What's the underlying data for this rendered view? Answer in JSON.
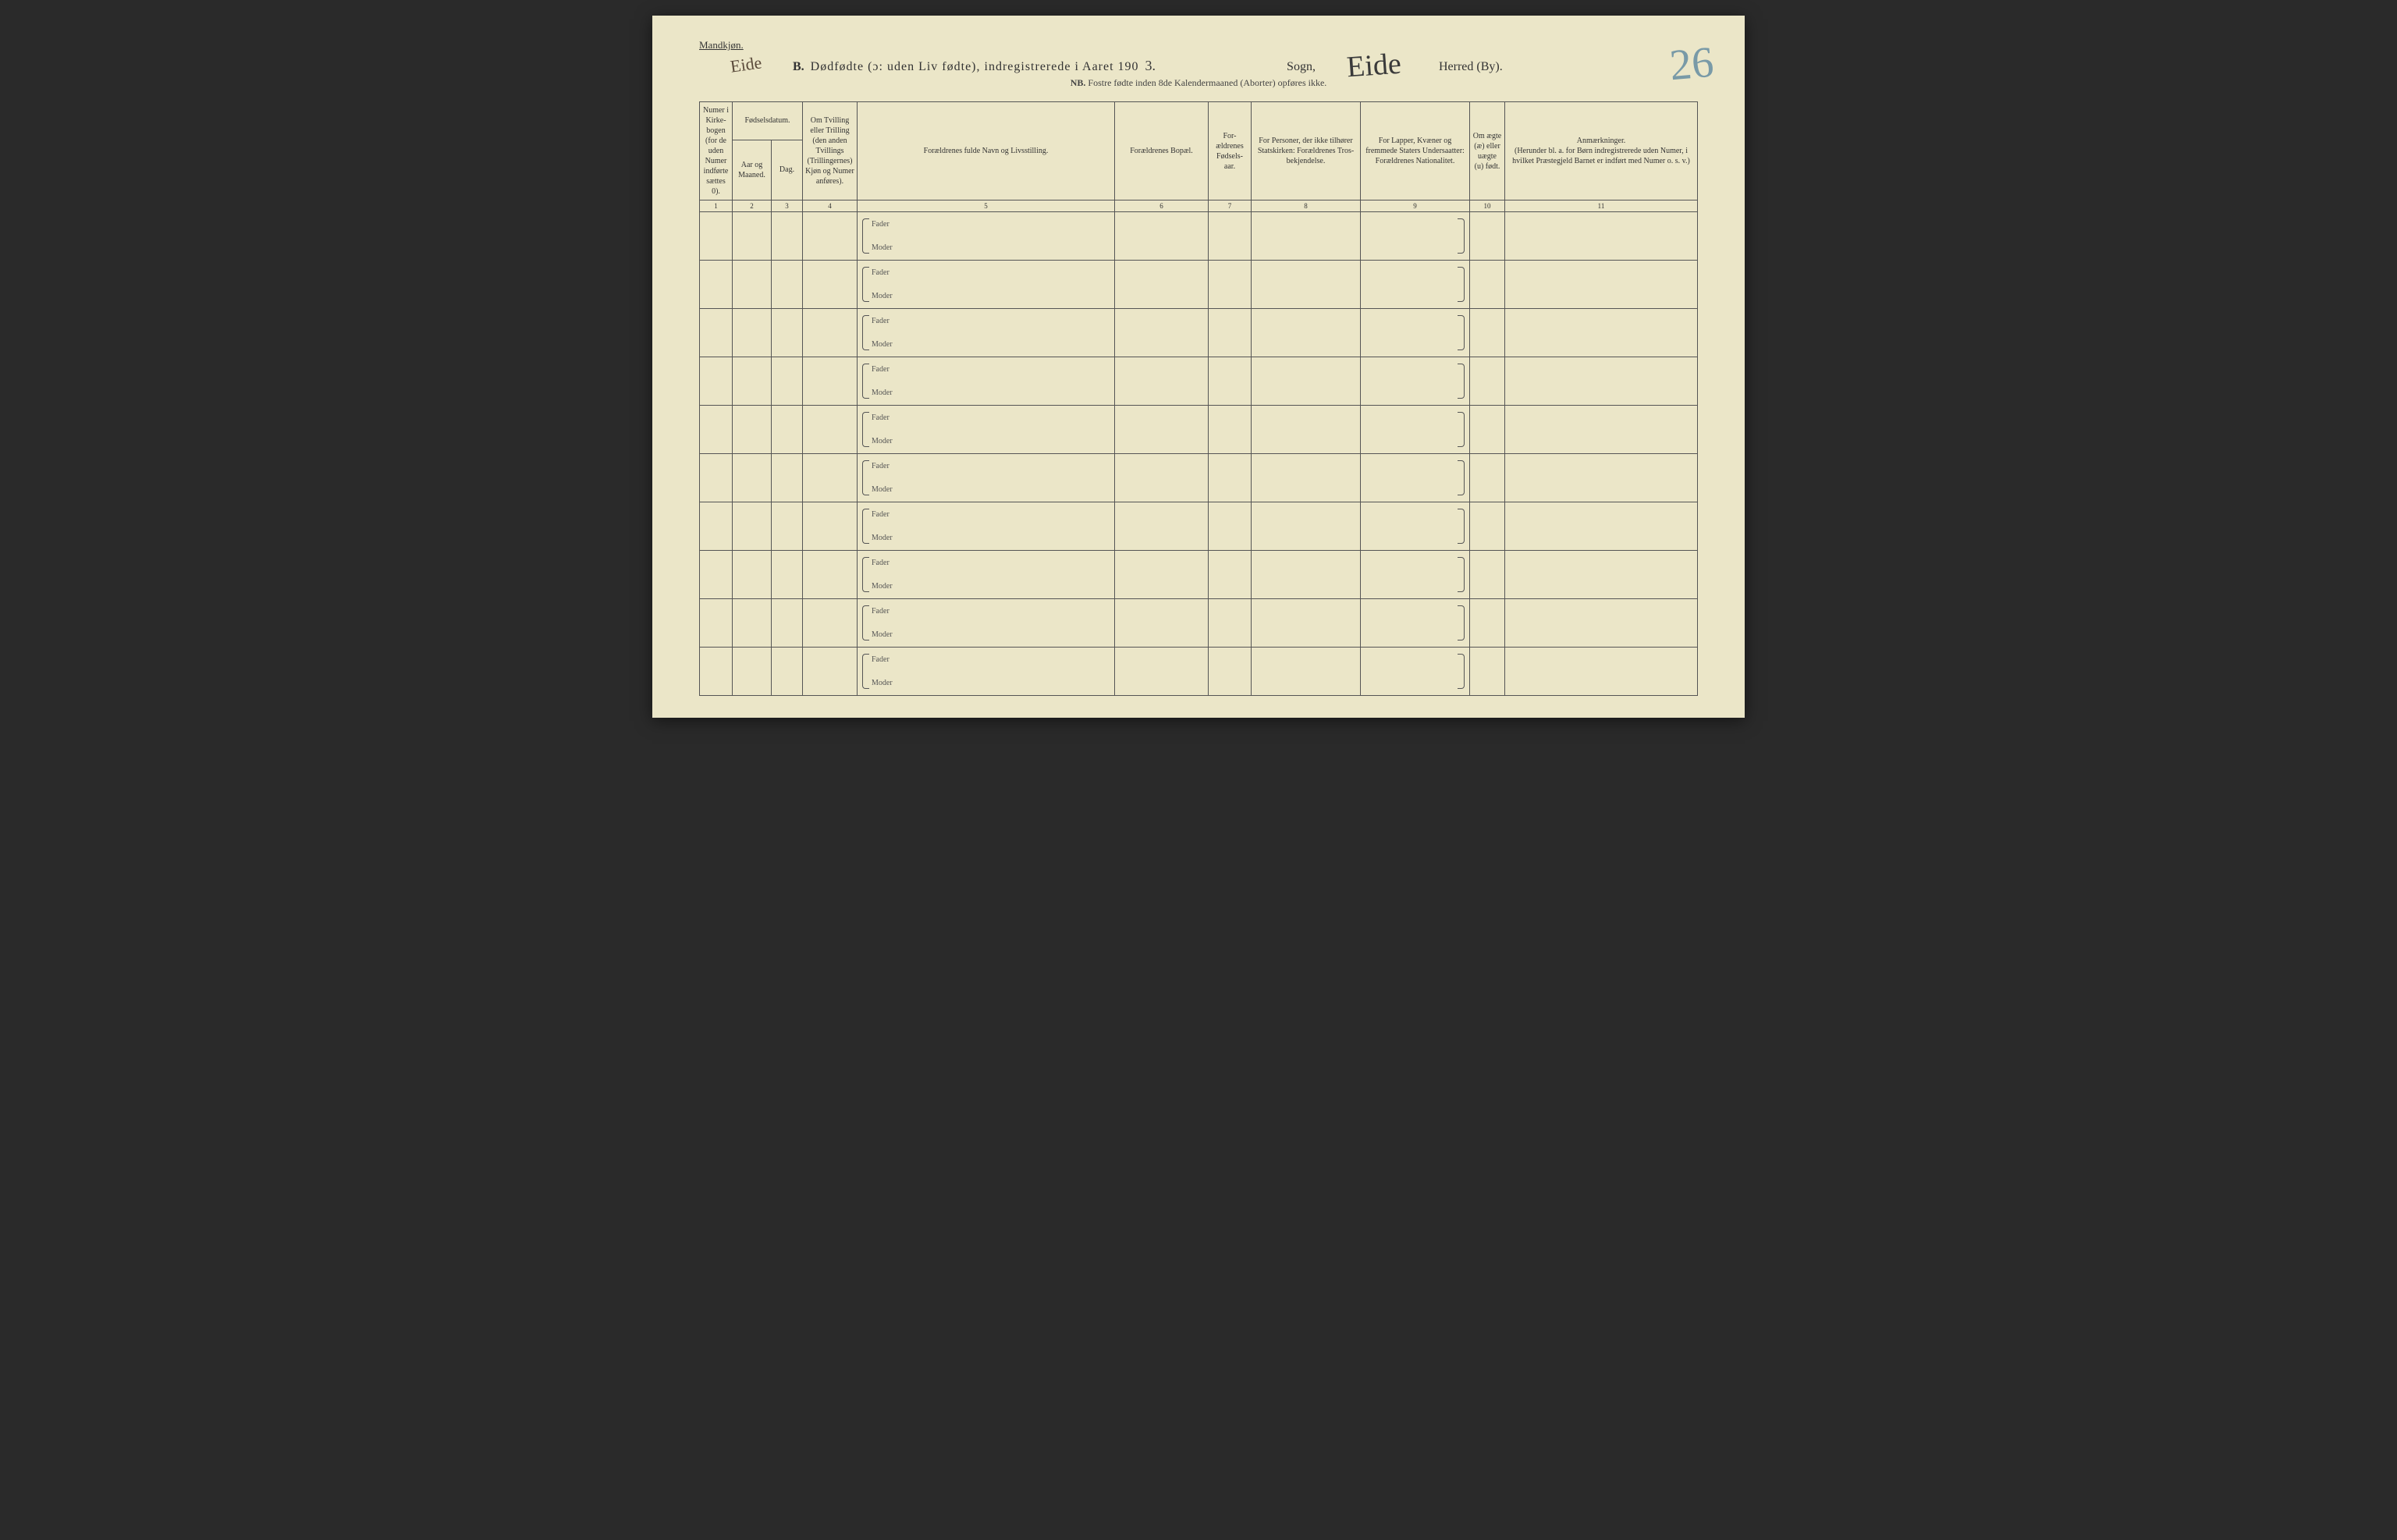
{
  "page": {
    "gender_heading": "Mandkjøn.",
    "section_letter": "B.",
    "title_main": "Dødfødte (ɔ: uden Liv fødte), indregistrerede i Aaret 190",
    "year_handwritten": "3.",
    "sogn_label": "Sogn,",
    "herred_label": "Herred (By).",
    "nb_prefix": "NB.",
    "nb_text": "Fostre fødte inden 8de Kalendermaaned (Aborter) opføres ikke.",
    "handwritten_eide_small": "Eide",
    "handwritten_eide_large": "Eide",
    "handwritten_page_number": "26"
  },
  "table": {
    "headers": {
      "col1": "Numer i Kirke-bogen (for de uden Numer indførte sættes 0).",
      "col2_group": "Fødselsdatum.",
      "col2a": "Aar og Maaned.",
      "col2b": "Dag.",
      "col4": "Om Tvilling eller Trilling (den anden Tvillings (Trillingernes) Kjøn og Numer anføres).",
      "col5": "Forældrenes fulde Navn og Livsstilling.",
      "col6": "Forældrenes Bopæl.",
      "col7": "For-ældrenes Fødsels-aar.",
      "col8": "For Personer, der ikke tilhører Statskirken: Forældrenes Tros-bekjendelse.",
      "col9": "For Lapper, Kvæner og fremmede Staters Undersaatter: Forældrenes Nationalitet.",
      "col10": "Om ægte (æ) eller uægte (u) født.",
      "col11": "Anmærkninger.",
      "col11_sub": "(Herunder bl. a. for Børn indregistrerede uden Numer, i hvilket Præstegjeld Barnet er indført med Numer o. s. v.)"
    },
    "column_numbers": [
      "1",
      "2",
      "3",
      "4",
      "5",
      "6",
      "7",
      "8",
      "9",
      "10",
      "11"
    ],
    "row_labels": {
      "fader": "Fader",
      "moder": "Moder"
    },
    "row_count": 10
  },
  "colors": {
    "paper": "#ebe6c8",
    "ink": "#333333",
    "rule": "#555555",
    "pencil_blue": "#4a7a9a",
    "handwriting": "#3a3a3a"
  }
}
